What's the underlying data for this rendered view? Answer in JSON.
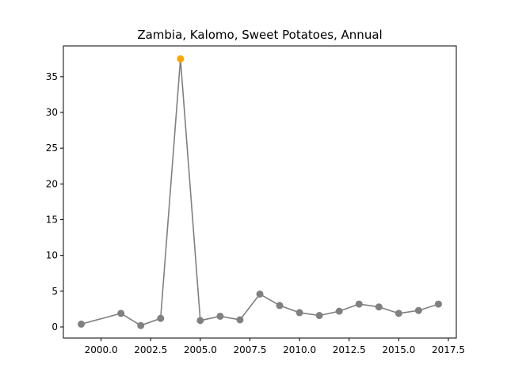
{
  "chart_data": {
    "type": "line",
    "title": "Zambia, Kalomo, Sweet Potatoes, Annual",
    "xlabel": "",
    "ylabel": "",
    "xlim": [
      1998.1,
      2017.9
    ],
    "ylim": [
      -1.55,
      39.3
    ],
    "grid": false,
    "legend": "none",
    "xticks": [
      2000.0,
      2002.5,
      2005.0,
      2007.5,
      2010.0,
      2012.5,
      2015.0,
      2017.5
    ],
    "xtick_labels": [
      "2000.0",
      "2002.5",
      "2005.0",
      "2007.5",
      "2010.0",
      "2012.5",
      "2015.0",
      "2017.5"
    ],
    "yticks": [
      0,
      5,
      10,
      15,
      20,
      25,
      30,
      35
    ],
    "ytick_labels": [
      "0",
      "5",
      "10",
      "15",
      "20",
      "25",
      "30",
      "35"
    ],
    "series": [
      {
        "color": "#808080",
        "x": [
          1999,
          2001,
          2002,
          2003,
          2004,
          2005,
          2006,
          2007,
          2008,
          2009,
          2010,
          2011,
          2012,
          2013,
          2014,
          2015,
          2016,
          2017
        ],
        "y": [
          0.4,
          1.9,
          0.2,
          1.2,
          37.5,
          0.9,
          1.5,
          1.0,
          4.6,
          3.0,
          2.0,
          1.6,
          2.2,
          3.2,
          2.8,
          1.9,
          2.3,
          3.2
        ]
      }
    ],
    "highlight": {
      "x": 2004,
      "y": 37.5,
      "color": "#ffa500"
    }
  }
}
